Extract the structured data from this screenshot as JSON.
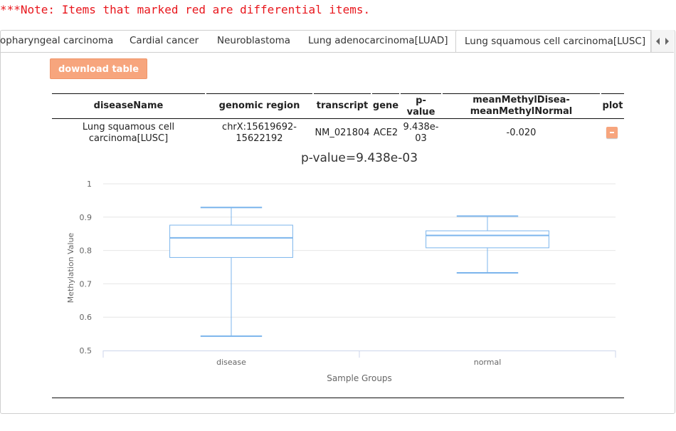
{
  "note": "***Note: Items that marked red are differential items.",
  "tabs": [
    "opharyngeal carcinoma",
    "Cardial cancer",
    "Neuroblastoma",
    "Lung adenocarcinoma[LUAD]",
    "Lung squamous cell carcinoma[LUSC]"
  ],
  "active_tab": "Lung squamous cell carcinoma[LUSC]",
  "download_button": "download table",
  "table": {
    "headers": {
      "disease": "diseaseName",
      "region": "genomic region",
      "transcript": "transcript",
      "gene": "gene",
      "pvalue_1": "p-",
      "pvalue_2": "value",
      "mean_1": "meanMethylDisea-",
      "mean_2": "meanMethylNormal",
      "plot": "plot"
    },
    "row": {
      "disease_1": "Lung squamous cell",
      "disease_2": "carcinoma[LUSC]",
      "region_1": "chrX:15619692-",
      "region_2": "15622192",
      "transcript": "NM_021804",
      "gene": "ACE2",
      "pvalue_1": "9.438e-",
      "pvalue_2": "03",
      "mean_diff": "-0.020"
    }
  },
  "chart_title": "p-value=9.438e-03",
  "chart_data": {
    "type": "boxplot",
    "title": "p-value=9.438e-03",
    "xlabel": "Sample Groups",
    "ylabel": "Methylation Value",
    "categories": [
      "disease",
      "normal"
    ],
    "yticks": [
      "0.5",
      "0.6",
      "0.7",
      "0.8",
      "0.9",
      "1"
    ],
    "ylim": [
      0.5,
      1.0
    ],
    "grid": true,
    "boxes": [
      {
        "name": "disease",
        "min": 0.543,
        "q1": 0.779,
        "median": 0.838,
        "q3": 0.876,
        "max": 0.929
      },
      {
        "name": "normal",
        "min": 0.733,
        "q1": 0.808,
        "median": 0.845,
        "q3": 0.859,
        "max": 0.903
      }
    ],
    "colors": {
      "box": "#7cb5ec",
      "grid": "#e6e6e6",
      "axis_text": "#666666"
    }
  }
}
